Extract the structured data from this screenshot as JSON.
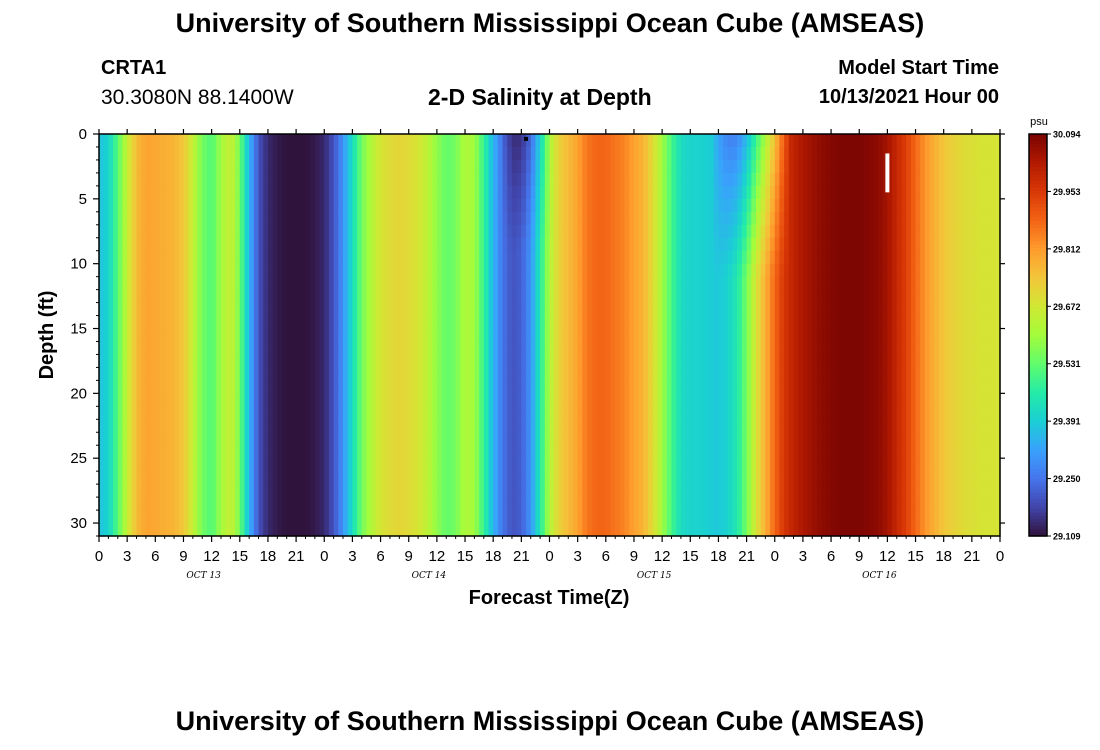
{
  "header": {
    "title": "University of Southern Mississippi Ocean Cube (AMSEAS)",
    "station_id": "CRTA1",
    "station_coords": "30.3080N  88.1400W",
    "plot_title": "2-D Salinity at Depth",
    "model_start_label": "Model Start Time",
    "model_start_value": "10/13/2021 Hour 00"
  },
  "footer": {
    "title": "University of Southern Mississippi Ocean Cube (AMSEAS)"
  },
  "colors": {
    "background": "#ffffff",
    "axis": "#000000",
    "colormap": [
      "#30123b",
      "#4145ab",
      "#4675ed",
      "#39a2fc",
      "#1bcfd4",
      "#24eca6",
      "#61fc6c",
      "#a4fc3b",
      "#d1e834",
      "#f3c63a",
      "#fe9b2d",
      "#f36315",
      "#d93806",
      "#b11901",
      "#7a0402"
    ]
  },
  "chart_data": {
    "type": "heatmap",
    "title": "2-D Salinity at Depth",
    "xlabel": "Forecast Time(Z)",
    "ylabel": "Depth (ft)",
    "x_ticks": [
      "0",
      "3",
      "6",
      "9",
      "12",
      "15",
      "18",
      "21",
      "0",
      "3",
      "6",
      "9",
      "12",
      "15",
      "18",
      "21",
      "0",
      "3",
      "6",
      "9",
      "12",
      "15",
      "18",
      "21",
      "0",
      "3",
      "6",
      "9",
      "12",
      "15",
      "18",
      "21",
      "0"
    ],
    "x_range_hours": [
      0,
      96
    ],
    "day_labels": [
      "OCT 13",
      "OCT 14",
      "OCT 15",
      "OCT 16"
    ],
    "y_ticks": [
      "0",
      "5",
      "10",
      "15",
      "20",
      "25",
      "30"
    ],
    "y_range_ft": [
      0,
      31
    ],
    "colorbar": {
      "unit": "psu",
      "min": 29.109,
      "max": 30.094,
      "tick_labels": [
        "30.094",
        "29.953",
        "29.812",
        "29.672",
        "29.531",
        "29.391",
        "29.250",
        "29.109"
      ]
    },
    "salinity_profile": {
      "hours": [
        0,
        1,
        2,
        3,
        4,
        5,
        6,
        7,
        8,
        9,
        10,
        11,
        12,
        13,
        14,
        15,
        16,
        17,
        18,
        19,
        20,
        21,
        22,
        23,
        24,
        25,
        26,
        27,
        28,
        29,
        30,
        31,
        32,
        33,
        34,
        35,
        36,
        37,
        38,
        39,
        40,
        41,
        42,
        43,
        44,
        45,
        46,
        47,
        48,
        49,
        50,
        51,
        52,
        53,
        54,
        55,
        56,
        57,
        58,
        59,
        60,
        61,
        62,
        63,
        64,
        65,
        66,
        67,
        68,
        69,
        70,
        71,
        72,
        73,
        74,
        75,
        76,
        77,
        78,
        79,
        80,
        81,
        82,
        83,
        84,
        85,
        86,
        87,
        88,
        89,
        90,
        91,
        92,
        93,
        94,
        95,
        96
      ],
      "values": [
        29.37,
        29.4,
        29.52,
        29.65,
        29.76,
        29.8,
        29.79,
        29.78,
        29.77,
        29.74,
        29.65,
        29.55,
        29.51,
        29.6,
        29.66,
        29.55,
        29.35,
        29.2,
        29.14,
        29.12,
        29.11,
        29.11,
        29.11,
        29.12,
        29.14,
        29.2,
        29.3,
        29.42,
        29.55,
        29.62,
        29.68,
        29.7,
        29.71,
        29.7,
        29.68,
        29.64,
        29.58,
        29.53,
        29.55,
        29.62,
        29.6,
        29.48,
        29.35,
        29.25,
        29.2,
        29.22,
        29.3,
        29.45,
        29.62,
        29.72,
        29.76,
        29.8,
        29.86,
        29.88,
        29.88,
        29.86,
        29.84,
        29.8,
        29.77,
        29.7,
        29.6,
        29.5,
        29.42,
        29.4,
        29.4,
        29.39,
        29.38,
        29.4,
        29.45,
        29.55,
        29.68,
        29.78,
        29.88,
        29.96,
        30.0,
        30.03,
        30.05,
        30.07,
        30.08,
        30.09,
        30.09,
        30.09,
        30.08,
        30.07,
        30.04,
        29.99,
        29.94,
        29.88,
        29.82,
        29.78,
        29.74,
        29.72,
        29.7,
        29.69,
        29.68,
        29.68,
        29.68
      ]
    },
    "annotations": [
      {
        "type": "point",
        "hour": 45.5,
        "depth_ft": 0.3,
        "color": "#000000"
      },
      {
        "type": "segment",
        "hour": 84,
        "depth_from_ft": 1.5,
        "depth_to_ft": 4.5,
        "color": "#ffffff"
      }
    ]
  }
}
